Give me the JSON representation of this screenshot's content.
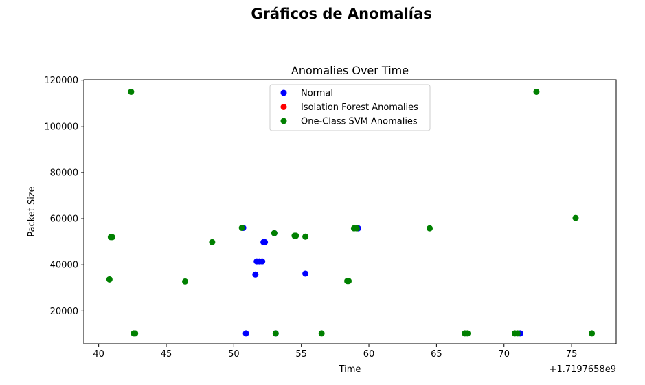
{
  "suptitle": "Gráficos de Anomalías",
  "chart_data": {
    "type": "scatter",
    "title": "Anomalies Over Time",
    "xlabel": "Time",
    "ylabel": "Packet Size",
    "x_offset_label": "+1.7197658e9",
    "xlim": [
      38.9,
      78.3
    ],
    "ylim": [
      5800,
      120200
    ],
    "xticks": [
      40,
      45,
      50,
      55,
      60,
      65,
      70,
      75
    ],
    "yticks": [
      20000,
      40000,
      60000,
      80000,
      100000,
      120000
    ],
    "legend_position": "upper-center",
    "grid": false,
    "series": [
      {
        "name": "Normal",
        "color": "#0000ff",
        "points": [
          [
            50.7,
            56000
          ],
          [
            50.9,
            10300
          ],
          [
            51.6,
            35800
          ],
          [
            51.7,
            41500
          ],
          [
            51.9,
            41500
          ],
          [
            52.1,
            41500
          ],
          [
            52.2,
            49800
          ],
          [
            52.3,
            49800
          ],
          [
            53.0,
            53700
          ],
          [
            53.1,
            10300
          ],
          [
            55.3,
            36200
          ],
          [
            59.2,
            55800
          ],
          [
            71.2,
            10300
          ]
        ]
      },
      {
        "name": "Isolation Forest Anomalies",
        "color": "#ff0000",
        "points": []
      },
      {
        "name": "One-Class SVM Anomalies",
        "color": "#008000",
        "points": [
          [
            40.8,
            33700
          ],
          [
            40.9,
            52000
          ],
          [
            41.0,
            52000
          ],
          [
            42.4,
            115000
          ],
          [
            42.6,
            10300
          ],
          [
            42.7,
            10300
          ],
          [
            46.4,
            32800
          ],
          [
            48.4,
            49800
          ],
          [
            50.6,
            56000
          ],
          [
            53.0,
            53700
          ],
          [
            53.1,
            10300
          ],
          [
            54.5,
            52600
          ],
          [
            54.6,
            52600
          ],
          [
            55.3,
            52200
          ],
          [
            56.5,
            10300
          ],
          [
            58.4,
            33000
          ],
          [
            58.5,
            33000
          ],
          [
            58.9,
            55800
          ],
          [
            59.1,
            55800
          ],
          [
            64.5,
            55800
          ],
          [
            67.1,
            10300
          ],
          [
            67.3,
            10300
          ],
          [
            70.8,
            10300
          ],
          [
            71.0,
            10300
          ],
          [
            72.4,
            115000
          ],
          [
            75.3,
            60300
          ],
          [
            76.5,
            10300
          ]
        ]
      }
    ]
  }
}
